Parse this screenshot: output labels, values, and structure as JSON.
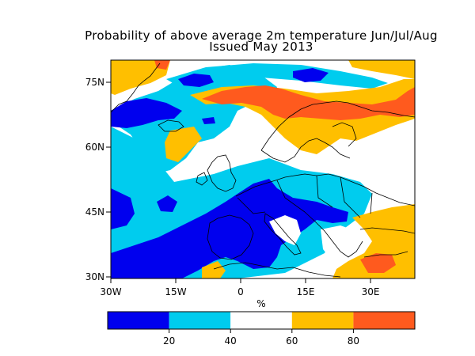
{
  "title": "Probability of above average 2m temperature Jun/Jul/Aug",
  "subtitle": "Issued May 2013",
  "map": {
    "lon_ticks": [
      "30W",
      "15W",
      "0",
      "15E",
      "30E"
    ],
    "lat_ticks": [
      "75N",
      "60N",
      "45N",
      "30N"
    ],
    "xlabel": "%"
  },
  "colorbar": {
    "bins": [
      {
        "range": [
          0,
          20
        ],
        "color": "#0000ee"
      },
      {
        "range": [
          20,
          40
        ],
        "color": "#00ccee"
      },
      {
        "range": [
          40,
          60
        ],
        "color": "#ffffff"
      },
      {
        "range": [
          60,
          80
        ],
        "color": "#ffbf00"
      },
      {
        "range": [
          80,
          100
        ],
        "color": "#ff5a1e"
      }
    ],
    "tick_labels": [
      "20",
      "40",
      "60",
      "80"
    ]
  },
  "colors": {
    "blue": "#0000ee",
    "cyan": "#00ccee",
    "white": "#ffffff",
    "yellow": "#ffbf00",
    "orange": "#ff5a1e"
  }
}
